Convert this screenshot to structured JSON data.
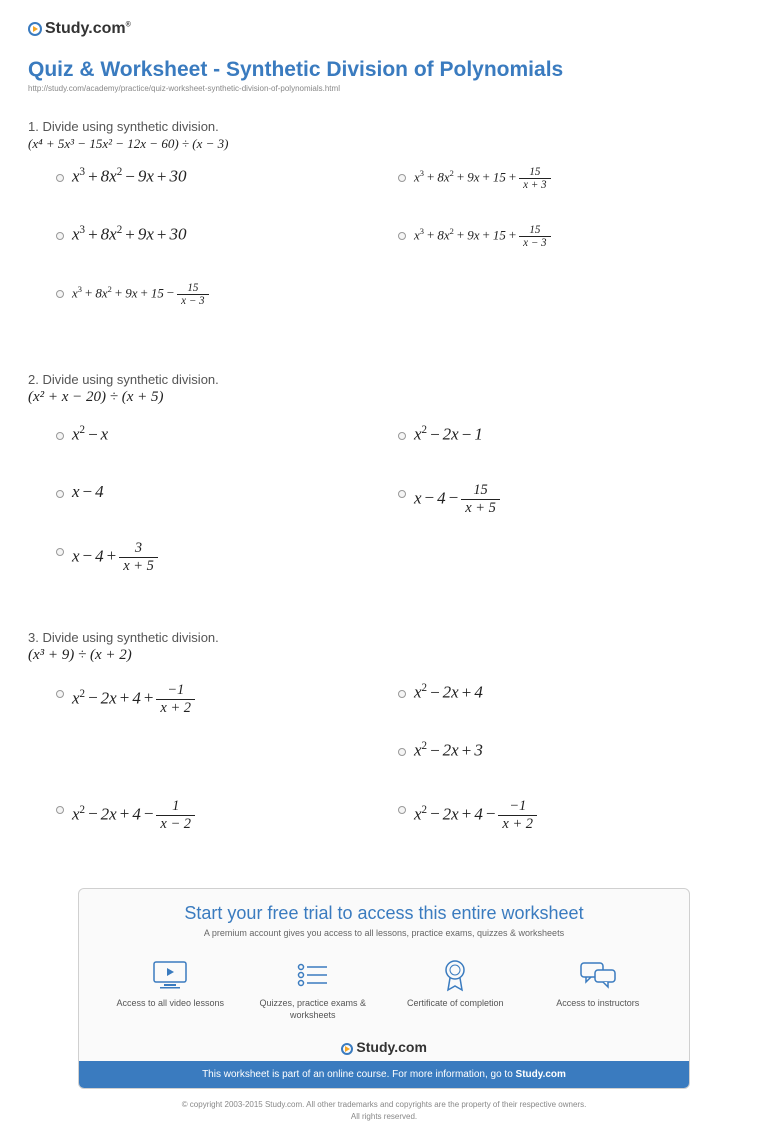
{
  "brand": {
    "name": "Study.com",
    "tm": "®"
  },
  "header": {
    "title": "Quiz & Worksheet - Synthetic Division of Polynomials",
    "url": "http://study.com/academy/practice/quiz-worksheet-synthetic-division-of-polynomials.html"
  },
  "questions": [
    {
      "num": "1.",
      "prompt": "Divide using synthetic division.",
      "expr_html": "(x⁴ + 5x³ − 15x² − 12x − 60) ÷ (x − 3)",
      "expr_class": "small",
      "answers": [
        {
          "html": "<i>x</i><sup>3</sup><span class='op'>+</span>8<i>x</i><sup>2</sup><span class='op'>−</span>9<i>x</i><span class='op'>+</span>30",
          "cls": ""
        },
        {
          "html": "<i>x</i><sup>3</sup><span class='op'>+</span>8<i>x</i><sup>2</sup><span class='op'>+</span>9<i>x</i><span class='op'>+</span>15<span class='op'>+</span><span class='frac'><span class='num'>15</span><span class='den'><i>x</i> + 3</span></span>",
          "cls": "small"
        },
        {
          "html": "<i>x</i><sup>3</sup><span class='op'>+</span>8<i>x</i><sup>2</sup><span class='op'>+</span>9<i>x</i><span class='op'>+</span>30",
          "cls": ""
        },
        {
          "html": "<i>x</i><sup>3</sup><span class='op'>+</span>8<i>x</i><sup>2</sup><span class='op'>+</span>9<i>x</i><span class='op'>+</span>15<span class='op'>+</span><span class='frac'><span class='num'>15</span><span class='den'><i>x</i> − 3</span></span>",
          "cls": "small"
        },
        {
          "html": "<i>x</i><sup>3</sup><span class='op'>+</span>8<i>x</i><sup>2</sup><span class='op'>+</span>9<i>x</i><span class='op'>+</span>15<span class='op'>−</span><span class='frac'><span class='num'>15</span><span class='den'><i>x</i> − 3</span></span>",
          "cls": "small"
        }
      ]
    },
    {
      "num": "2.",
      "prompt": "Divide using synthetic division.",
      "expr_html": "(x² + x − 20) ÷ (x + 5)",
      "expr_class": "large",
      "answers": [
        {
          "html": "<i>x</i><sup>2</sup><span class='op'>−</span><i>x</i>",
          "cls": ""
        },
        {
          "html": "<i>x</i><sup>2</sup><span class='op'>−</span>2<i>x</i><span class='op'>−</span>1",
          "cls": ""
        },
        {
          "html": "<i>x</i><span class='op'>−</span>4",
          "cls": ""
        },
        {
          "html": "<i>x</i><span class='op'>−</span>4<span class='op'>−</span><span class='frac'><span class='num'>15</span><span class='den'><i>x</i> + 5</span></span>",
          "cls": ""
        },
        {
          "html": "<i>x</i><span class='op'>−</span>4<span class='op'>+</span><span class='frac'><span class='num'>3</span><span class='den'><i>x</i> + 5</span></span>",
          "cls": ""
        }
      ]
    },
    {
      "num": "3.",
      "prompt": "Divide using synthetic division.",
      "expr_html": "(x³ + 9) ÷ (x + 2)",
      "expr_class": "large",
      "answers": [
        {
          "html": "<i>x</i><sup>2</sup><span class='op'>−</span>2<i>x</i><span class='op'>+</span>4<span class='op'>+</span><span class='frac'><span class='num'>−1</span><span class='den'><i>x</i> + 2</span></span>",
          "cls": ""
        },
        {
          "html": "<i>x</i><sup>2</sup><span class='op'>−</span>2<i>x</i><span class='op'>+</span>4",
          "cls": ""
        },
        {
          "html": "",
          "cls": "",
          "spacer": true
        },
        {
          "html": "<i>x</i><sup>2</sup><span class='op'>−</span>2<i>x</i><span class='op'>+</span>3",
          "cls": ""
        },
        {
          "html": "<i>x</i><sup>2</sup><span class='op'>−</span>2<i>x</i><span class='op'>+</span>4<span class='op'>−</span><span class='frac'><span class='num'>1</span><span class='den'><i>x</i> − 2</span></span>",
          "cls": ""
        },
        {
          "html": "<i>x</i><sup>2</sup><span class='op'>−</span>2<i>x</i><span class='op'>+</span>4<span class='op'>−</span><span class='frac'><span class='num'>−1</span><span class='den'><i>x</i> + 2</span></span>",
          "cls": ""
        }
      ]
    }
  ],
  "cta": {
    "title": "Start your free trial to access this entire worksheet",
    "subtitle": "A premium account gives you access to all lessons, practice exams, quizzes & worksheets",
    "features": [
      {
        "icon": "video",
        "label": "Access to all video lessons"
      },
      {
        "icon": "list",
        "label": "Quizzes, practice exams & worksheets"
      },
      {
        "icon": "cert",
        "label": "Certificate of completion"
      },
      {
        "icon": "chat",
        "label": "Access to instructors"
      }
    ],
    "bar_prefix": "This worksheet is part of an online course. For more information, go to ",
    "bar_link": "Study.com"
  },
  "copyright": {
    "line1": "© copyright 2003-2015 Study.com. All other trademarks and copyrights are the property of their respective owners.",
    "line2": "All rights reserved."
  },
  "colors": {
    "accent": "#3a7bbf",
    "icon_orange": "#f5a623",
    "text": "#333333",
    "muted": "#888888",
    "box_border": "#d0d0d0",
    "box_bg": "#fafafa"
  }
}
